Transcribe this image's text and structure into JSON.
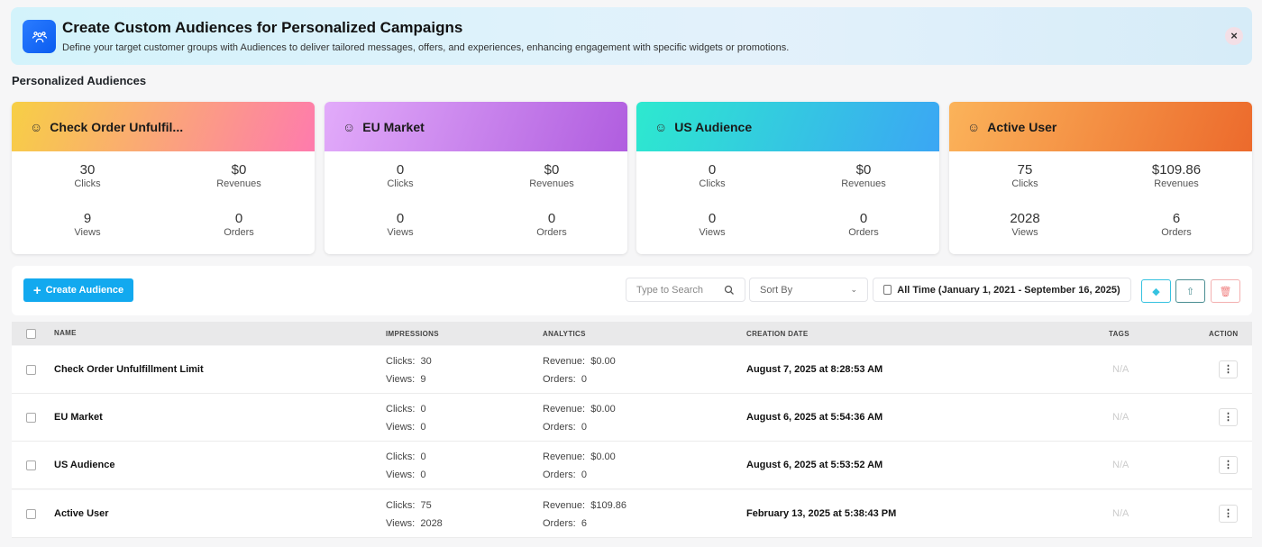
{
  "banner": {
    "title": "Create Custom Audiences for Personalized Campaigns",
    "description": "Define your target customer groups with Audiences to deliver tailored messages, offers, and experiences, enhancing engagement with specific widgets or promotions.",
    "close": "×"
  },
  "section_title": "Personalized Audiences",
  "cards": [
    {
      "name": "Check Order Unfulfil...",
      "icon": "cart-icon",
      "clicks": "30",
      "revenues": "$0",
      "views": "9",
      "orders": "0",
      "gradient": [
        "#f7cf45",
        "#fe7bad"
      ]
    },
    {
      "name": "EU Market",
      "icon": "user-icon",
      "clicks": "0",
      "revenues": "$0",
      "views": "0",
      "orders": "0",
      "gradient": [
        "#e2abfa",
        "#b05ddf"
      ]
    },
    {
      "name": "US Audience",
      "icon": "agent-icon",
      "clicks": "0",
      "revenues": "$0",
      "views": "0",
      "orders": "0",
      "gradient": [
        "#2de9cf",
        "#3ba6f4"
      ]
    },
    {
      "name": "Active User",
      "icon": "users-icon",
      "clicks": "75",
      "revenues": "$109.86",
      "views": "2028",
      "orders": "6",
      "gradient": [
        "#fbb35a",
        "#ec6a2c"
      ]
    }
  ],
  "stat_labels": {
    "clicks": "Clicks",
    "revenues": "Revenues",
    "views": "Views",
    "orders": "Orders"
  },
  "toolbar": {
    "create": "Create Audience",
    "search_placeholder": "Type to Search",
    "sort": "Sort By",
    "date_range": "All Time (January 1, 2021 - September 16, 2025)"
  },
  "table": {
    "headers": {
      "name": "NAME",
      "impressions": "IMPRESSIONS",
      "analytics": "ANALYTICS",
      "created": "CREATION DATE",
      "tags": "TAGS",
      "action": "ACTION"
    },
    "labels": {
      "clicks": "Clicks:",
      "views": "Views:",
      "revenue": "Revenue:",
      "orders": "Orders:"
    },
    "rows": [
      {
        "name": "Check Order Unfulfillment Limit",
        "clicks": "30",
        "views": "9",
        "revenue": "$0.00",
        "orders": "0",
        "created": "August 7, 2025 at 8:28:53 AM",
        "tags": "N/A"
      },
      {
        "name": "EU Market",
        "clicks": "0",
        "views": "0",
        "revenue": "$0.00",
        "orders": "0",
        "created": "August 6, 2025 at 5:54:36 AM",
        "tags": "N/A"
      },
      {
        "name": "US Audience",
        "clicks": "0",
        "views": "0",
        "revenue": "$0.00",
        "orders": "0",
        "created": "August 6, 2025 at 5:53:52 AM",
        "tags": "N/A"
      },
      {
        "name": "Active User",
        "clicks": "75",
        "views": "2028",
        "revenue": "$109.86",
        "orders": "6",
        "created": "February 13, 2025 at 5:38:43 PM",
        "tags": "N/A"
      }
    ]
  }
}
